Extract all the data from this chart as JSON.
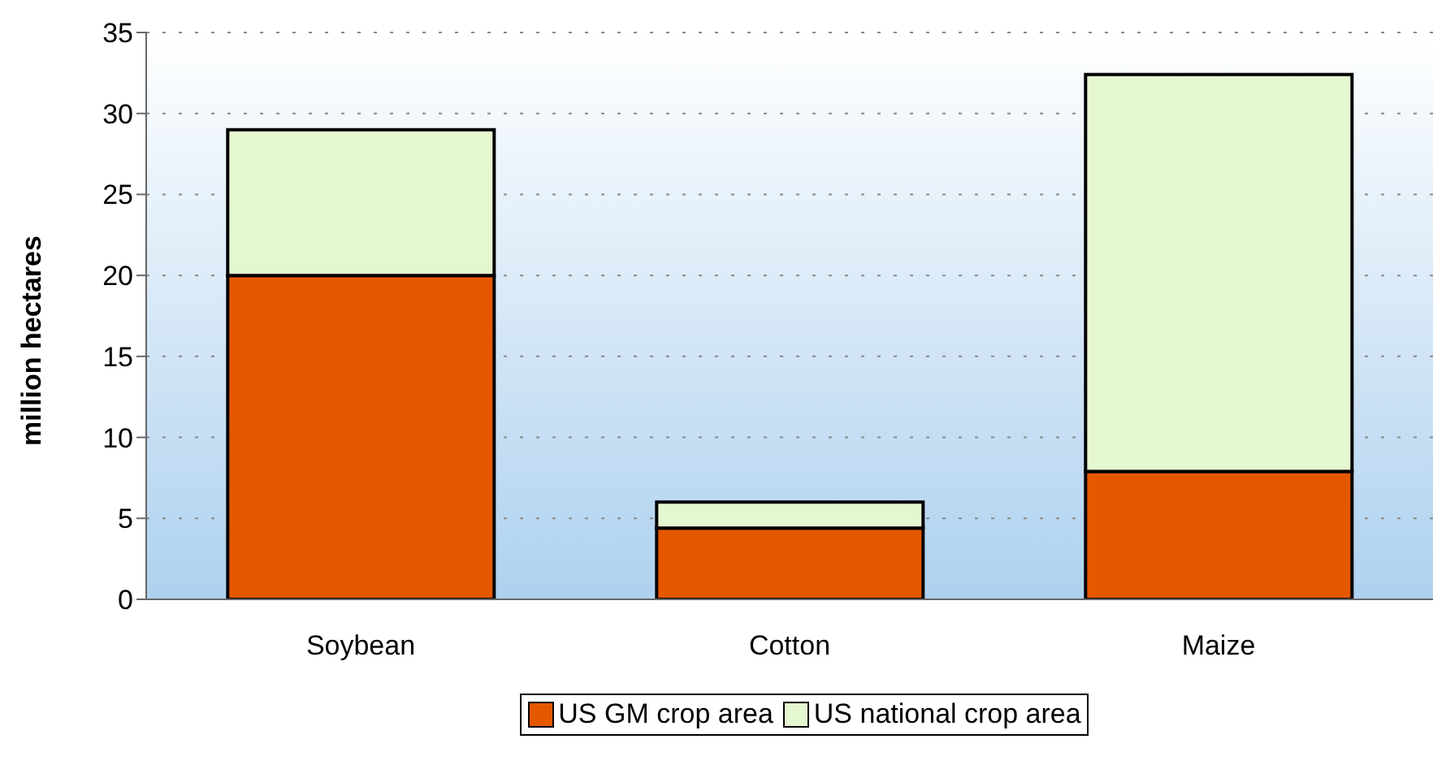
{
  "chart_data": {
    "type": "bar",
    "stacked": true,
    "ylabel": "million hectares",
    "categories": [
      "Soybean",
      "Cotton",
      "Maize"
    ],
    "series": [
      {
        "name": "US GM crop area",
        "color": "#e65800",
        "values": [
          20,
          4.4,
          7.9
        ]
      },
      {
        "name": "US national crop area",
        "color": "#e5f7d0",
        "values": [
          9,
          1.6,
          24.5
        ]
      }
    ],
    "ylim": [
      0,
      35
    ],
    "yticks": [
      0,
      5,
      10,
      15,
      20,
      25,
      30,
      35
    ],
    "grid": "y",
    "legend": "bottom"
  }
}
